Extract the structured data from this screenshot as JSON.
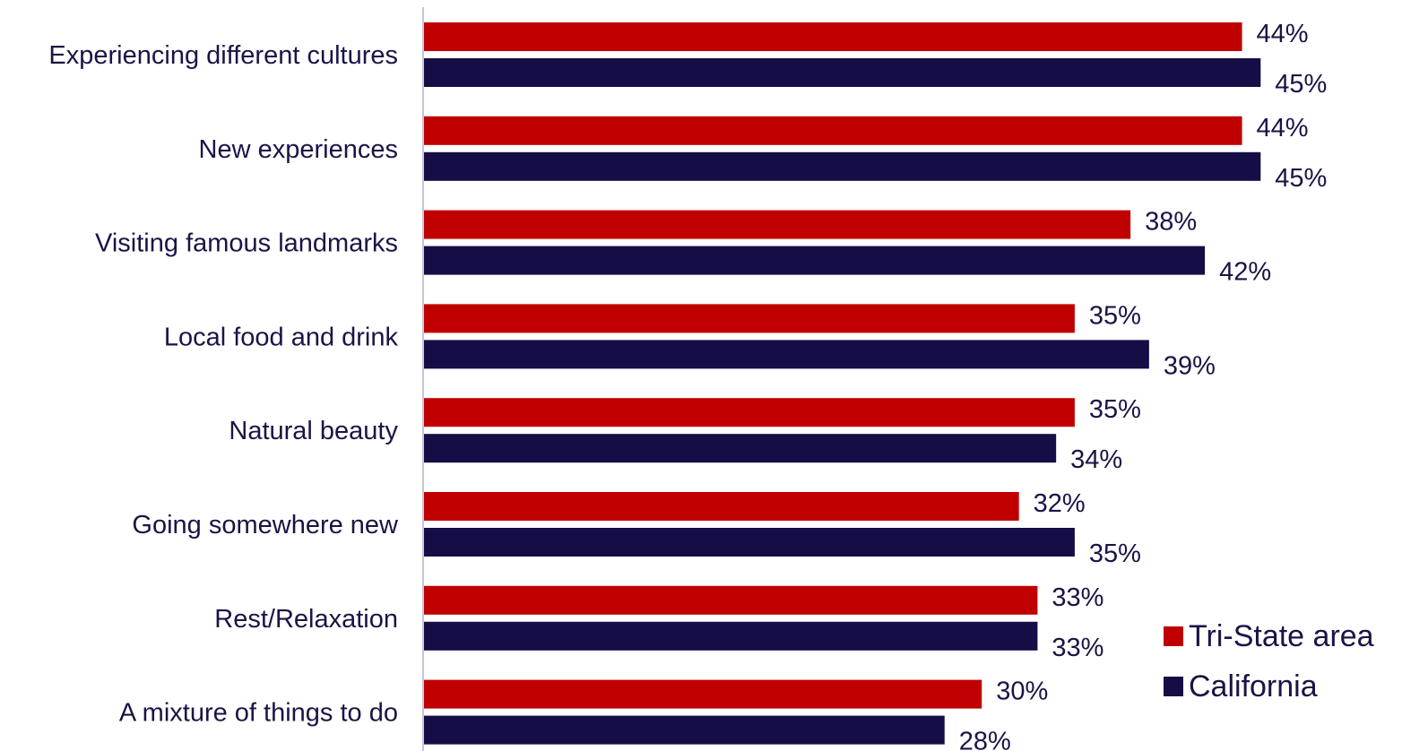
{
  "chart_data": {
    "type": "bar",
    "orientation": "horizontal",
    "categories": [
      "Experiencing different cultures",
      "New experiences",
      "Visiting famous landmarks",
      "Local food and drink",
      "Natural beauty",
      "Going somewhere new",
      "Rest/Relaxation",
      "A mixture of things to do"
    ],
    "series": [
      {
        "name": "Tri-State area",
        "color": "#c00000",
        "values": [
          44,
          44,
          38,
          35,
          35,
          32,
          33,
          30
        ]
      },
      {
        "name": "California",
        "color": "#150d45",
        "values": [
          45,
          45,
          42,
          39,
          34,
          35,
          33,
          28
        ]
      }
    ],
    "value_format": "percent",
    "xlim": [
      0,
      50
    ],
    "grid": false,
    "legend_position": "bottom-right"
  },
  "legend": {
    "items": [
      {
        "label": "Tri-State area",
        "color": "#c00000"
      },
      {
        "label": "California",
        "color": "#150d45"
      }
    ]
  }
}
